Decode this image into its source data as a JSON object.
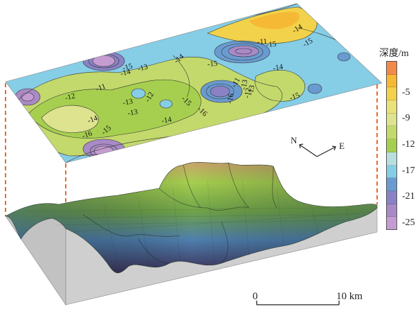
{
  "legend": {
    "title": "深度/m",
    "ticks": [
      {
        "value": "-5",
        "level": 2
      },
      {
        "value": "-9",
        "level": 4
      },
      {
        "value": "-12",
        "level": 6
      },
      {
        "value": "-17",
        "level": 8
      },
      {
        "value": "-21",
        "level": 10
      },
      {
        "value": "-25",
        "level": 12
      }
    ],
    "colors": [
      "#f08a4b",
      "#f5b935",
      "#f2d24a",
      "#e9e27a",
      "#dde38e",
      "#c3d96c",
      "#a6cf4f",
      "#b8dfe0",
      "#86cde6",
      "#6a9bd0",
      "#8a82c4",
      "#a88ac6",
      "#c59cd1"
    ]
  },
  "contour_labels": [
    "-14",
    "-15",
    "-13",
    "-11",
    "-12",
    "-13",
    "-13",
    "-12",
    "-14",
    "-15",
    "-16",
    "-16",
    "-15",
    "-14",
    "-14",
    "-16",
    "-15",
    "-13",
    "-14",
    "-11",
    "-11",
    "-12",
    "-13",
    "-15",
    "-14",
    "-15",
    "-14",
    "-15"
  ],
  "compass": {
    "north": "N",
    "east": "E"
  },
  "scale": {
    "start": "0",
    "end": "10 km"
  }
}
